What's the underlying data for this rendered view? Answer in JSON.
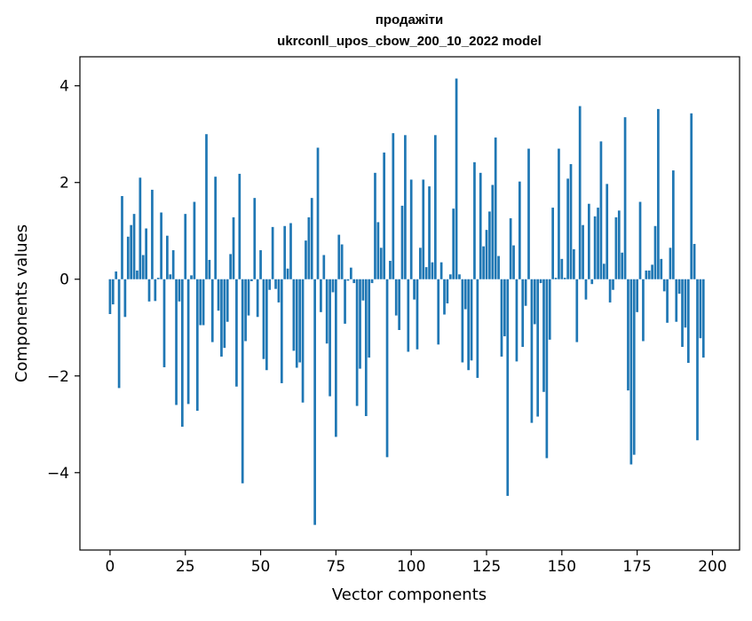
{
  "chart_data": {
    "type": "bar",
    "title_line1": "продажіти",
    "title_line2": "ukrconll_upos_cbow_200_10_2022 model",
    "xlabel": "Vector components",
    "ylabel": "Components values",
    "xlim": [
      -10,
      209
    ],
    "ylim": [
      -5.6,
      4.6
    ],
    "x_ticks": [
      0,
      25,
      50,
      75,
      100,
      125,
      150,
      175,
      200
    ],
    "x_tick_labels": [
      "0",
      "25",
      "50",
      "75",
      "100",
      "125",
      "150",
      "175",
      "200"
    ],
    "y_ticks": [
      -4,
      -2,
      0,
      2,
      4
    ],
    "y_tick_labels": [
      "−4",
      "−2",
      "0",
      "2",
      "4"
    ],
    "grid": false,
    "bar_color": "#1f77b4",
    "values": [
      -0.72,
      -0.52,
      0.16,
      -2.25,
      1.72,
      -0.78,
      0.88,
      1.12,
      1.35,
      0.18,
      2.1,
      0.5,
      1.05,
      -0.46,
      1.85,
      -0.45,
      0.03,
      1.38,
      -1.82,
      0.9,
      0.1,
      0.6,
      -2.6,
      -0.46,
      -3.05,
      1.35,
      -2.58,
      0.08,
      1.6,
      -2.72,
      -0.95,
      -0.95,
      3.0,
      0.4,
      -1.3,
      2.12,
      -0.65,
      -1.6,
      -1.42,
      -0.88,
      0.52,
      1.28,
      -2.22,
      2.18,
      -4.22,
      -1.28,
      -0.75,
      -0.04,
      1.68,
      -0.78,
      0.6,
      -1.65,
      -1.88,
      -0.22,
      1.08,
      -0.2,
      -0.48,
      -2.15,
      1.1,
      0.22,
      1.16,
      -1.48,
      -1.83,
      -1.72,
      -2.55,
      0.8,
      1.28,
      1.68,
      -5.08,
      2.72,
      -0.68,
      0.5,
      -1.33,
      -2.42,
      -0.27,
      -3.26,
      0.92,
      0.72,
      -0.92,
      -0.03,
      0.24,
      -0.08,
      -2.62,
      -1.85,
      -0.44,
      -2.83,
      -1.62,
      -0.08,
      2.2,
      1.18,
      0.65,
      2.62,
      -3.68,
      0.38,
      3.02,
      -0.75,
      -1.05,
      1.52,
      2.98,
      -1.5,
      2.06,
      -0.42,
      -1.45,
      0.65,
      2.06,
      0.25,
      1.92,
      0.35,
      2.98,
      -1.35,
      0.35,
      -0.73,
      -0.5,
      0.1,
      1.46,
      4.15,
      0.1,
      -1.72,
      -0.62,
      -1.88,
      -1.68,
      2.42,
      -2.04,
      2.2,
      0.68,
      1.02,
      1.4,
      1.95,
      2.93,
      0.48,
      -1.6,
      -1.18,
      -4.48,
      1.26,
      0.7,
      -1.7,
      2.02,
      -1.4,
      -0.55,
      2.7,
      -2.97,
      -0.93,
      -2.84,
      -0.08,
      -2.33,
      -3.7,
      -1.25,
      1.48,
      0.03,
      2.7,
      0.42,
      0.03,
      2.08,
      2.38,
      0.62,
      -1.3,
      3.58,
      1.12,
      -0.42,
      1.56,
      -0.1,
      1.3,
      1.48,
      2.85,
      0.32,
      1.97,
      -0.48,
      -0.22,
      1.28,
      1.42,
      0.55,
      3.35,
      -2.3,
      -3.83,
      -3.63,
      -0.68,
      1.6,
      -1.28,
      0.18,
      0.18,
      0.3,
      1.1,
      3.52,
      0.42,
      -0.25,
      -0.9,
      0.65,
      2.25,
      -0.88,
      -0.3,
      -1.4,
      -1.0,
      -1.73,
      3.43,
      0.73,
      -3.33,
      -1.22,
      -1.62
    ]
  }
}
